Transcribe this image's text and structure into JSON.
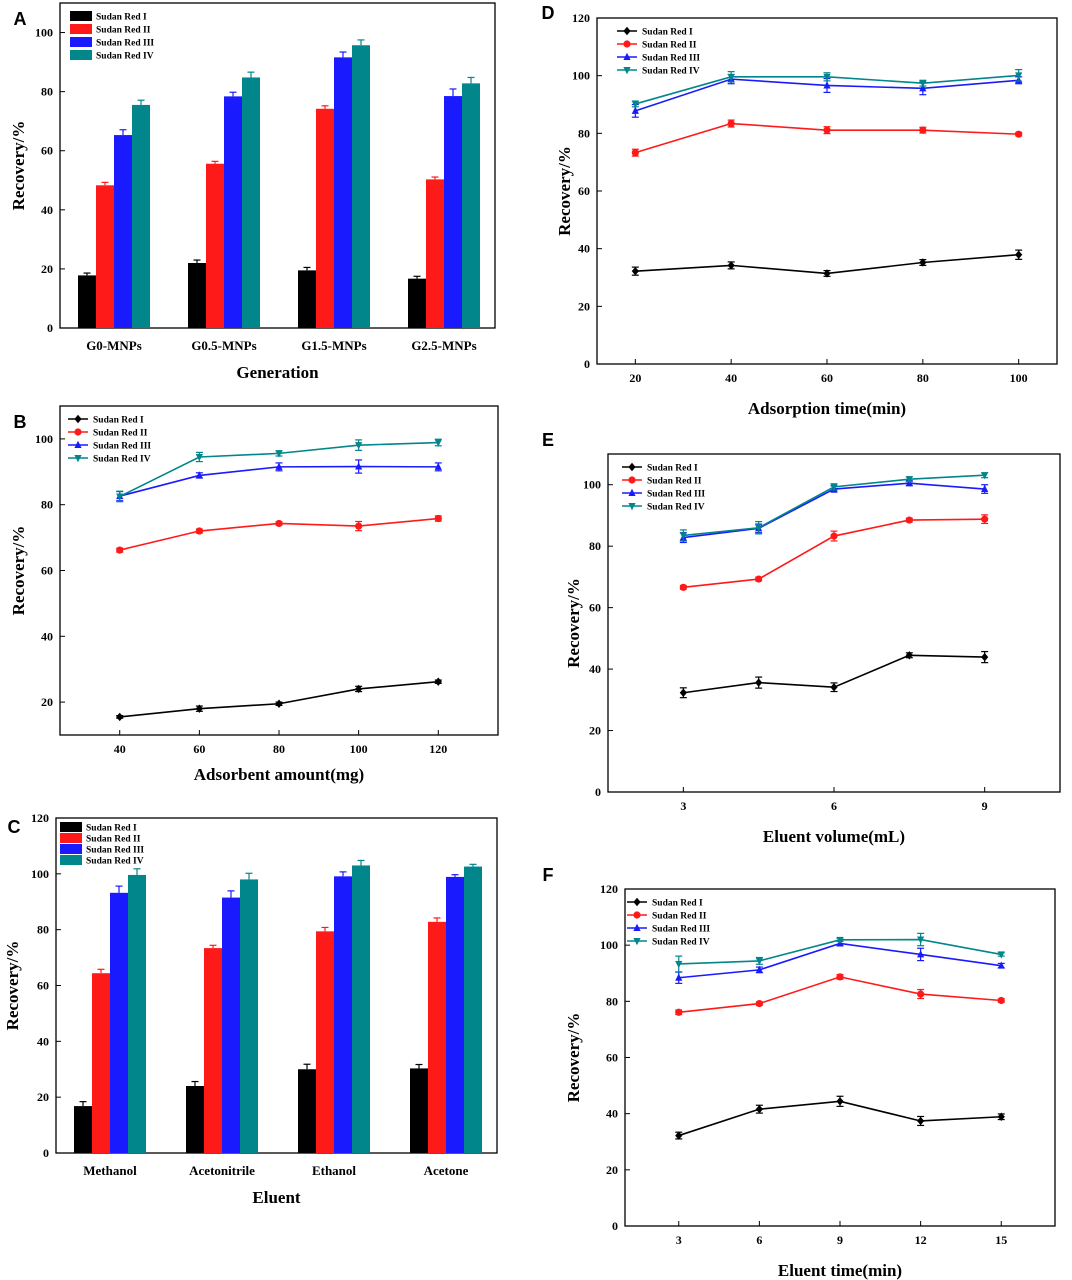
{
  "colors": {
    "sudan_red_i": "#000000",
    "sudan_red_ii": "#ff1a1a",
    "sudan_red_iii": "#1a1aff",
    "sudan_red_iv": "#00868b"
  },
  "chart_data": [
    {
      "panel": "A",
      "type": "bar",
      "categories": [
        "G0-MNPs",
        "G0.5-MNPs",
        "G1.5-MNPs",
        "G2.5-MNPs"
      ],
      "xlabel": "Generation",
      "ylabel": "Recovery/%",
      "ylim": [
        0,
        110
      ],
      "yticks": [
        "0",
        "20",
        "40",
        "60",
        "80",
        "100"
      ],
      "legend_position": "top-left",
      "series": [
        {
          "name": "Sudan Red I",
          "values": [
            17.8,
            22.0,
            19.5,
            16.7
          ],
          "errors": [
            0.8,
            1.0,
            1.0,
            0.8
          ]
        },
        {
          "name": "Sudan Red II",
          "values": [
            48.3,
            55.6,
            74.2,
            50.3
          ],
          "errors": [
            1.0,
            0.8,
            1.0,
            0.8
          ]
        },
        {
          "name": "Sudan Red III",
          "values": [
            65.3,
            78.4,
            91.6,
            78.5
          ],
          "errors": [
            1.8,
            1.4,
            1.8,
            2.4
          ]
        },
        {
          "name": "Sudan Red IV",
          "values": [
            75.5,
            84.8,
            95.7,
            82.8
          ],
          "errors": [
            1.6,
            1.8,
            1.8,
            2.0
          ]
        }
      ]
    },
    {
      "panel": "B",
      "type": "line",
      "x": [
        40,
        60,
        80,
        100,
        120
      ],
      "xlabel": "Adsorbent amount(mg)",
      "ylabel": "Recovery/%",
      "xlim": [
        25,
        135
      ],
      "ylim": [
        10,
        110
      ],
      "xticks": [
        "40",
        "60",
        "80",
        "100",
        "120"
      ],
      "yticks": [
        "20",
        "40",
        "60",
        "80",
        "100"
      ],
      "legend_position": "top-left",
      "series": [
        {
          "name": "Sudan Red I",
          "values": [
            15.5,
            18.0,
            19.5,
            24.0,
            26.2
          ],
          "errors": [
            0.4,
            0.8,
            0.5,
            0.8,
            0.5
          ]
        },
        {
          "name": "Sudan Red II",
          "values": [
            66.2,
            72.0,
            74.3,
            73.5,
            75.8
          ],
          "errors": [
            0.6,
            0.6,
            0.5,
            1.4,
            0.8
          ]
        },
        {
          "name": "Sudan Red III",
          "values": [
            82.6,
            88.9,
            91.5,
            91.6,
            91.5
          ],
          "errors": [
            1.4,
            0.8,
            1.2,
            2.0,
            1.2
          ]
        },
        {
          "name": "Sudan Red IV",
          "values": [
            82.5,
            94.5,
            95.6,
            98.1,
            98.9
          ],
          "errors": [
            1.6,
            1.4,
            0.8,
            1.6,
            1.0
          ]
        }
      ]
    },
    {
      "panel": "C",
      "type": "bar",
      "categories": [
        "Methanol",
        "Acetonitrile",
        "Ethanol",
        "Acetone"
      ],
      "xlabel": "Eluent",
      "ylabel": "Recovery/%",
      "ylim": [
        0,
        120
      ],
      "yticks": [
        "0",
        "20",
        "40",
        "60",
        "80",
        "100",
        "120"
      ],
      "legend_position": "top-left",
      "series": [
        {
          "name": "Sudan Red I",
          "values": [
            16.8,
            24.0,
            30.0,
            30.3
          ],
          "errors": [
            1.6,
            1.6,
            1.8,
            1.4
          ]
        },
        {
          "name": "Sudan Red II",
          "values": [
            64.4,
            73.4,
            79.4,
            82.8
          ],
          "errors": [
            1.4,
            1.0,
            1.4,
            1.4
          ]
        },
        {
          "name": "Sudan Red III",
          "values": [
            93.2,
            91.5,
            99.1,
            98.9
          ],
          "errors": [
            2.4,
            2.4,
            1.6,
            0.8
          ]
        },
        {
          "name": "Sudan Red IV",
          "values": [
            99.6,
            98.0,
            103.0,
            102.6
          ],
          "errors": [
            2.2,
            2.2,
            1.8,
            0.8
          ]
        }
      ]
    },
    {
      "panel": "D",
      "type": "line",
      "x": [
        20,
        40,
        60,
        80,
        100
      ],
      "xlabel": "Adsorption time(min)",
      "ylabel": "Recovery/%",
      "xlim": [
        12,
        108
      ],
      "ylim": [
        0,
        120
      ],
      "xticks": [
        "20",
        "40",
        "60",
        "80",
        "100"
      ],
      "yticks": [
        "0",
        "20",
        "40",
        "60",
        "80",
        "100",
        "120"
      ],
      "legend_position": "top-left",
      "series": [
        {
          "name": "Sudan Red I",
          "values": [
            32.2,
            34.2,
            31.4,
            35.2,
            37.9
          ],
          "errors": [
            1.4,
            1.2,
            1.0,
            1.0,
            1.6
          ]
        },
        {
          "name": "Sudan Red II",
          "values": [
            73.3,
            83.4,
            81.1,
            81.1,
            79.7
          ],
          "errors": [
            1.2,
            1.2,
            1.2,
            1.0,
            0.6
          ]
        },
        {
          "name": "Sudan Red III",
          "values": [
            87.8,
            98.8,
            96.6,
            95.6,
            98.4
          ],
          "errors": [
            2.2,
            1.6,
            2.4,
            2.2,
            1.2
          ]
        },
        {
          "name": "Sudan Red IV",
          "values": [
            90.2,
            99.6,
            99.6,
            97.4,
            100.1
          ],
          "errors": [
            1.0,
            1.8,
            1.4,
            1.0,
            2.0
          ]
        }
      ]
    },
    {
      "panel": "E",
      "type": "line",
      "x": [
        3,
        4.5,
        6,
        7.5,
        9
      ],
      "xlabel": "Eluent volume(mL)",
      "ylabel": "Recovery/%",
      "xlim": [
        1.5,
        10.5
      ],
      "ylim": [
        0,
        110
      ],
      "xticks": [
        "3",
        "6",
        "9"
      ],
      "yticks": [
        "0",
        "20",
        "40",
        "60",
        "80",
        "100"
      ],
      "legend_position": "top-left",
      "series": [
        {
          "name": "Sudan Red I",
          "values": [
            32.3,
            35.6,
            34.1,
            44.5,
            43.9
          ],
          "errors": [
            1.6,
            1.8,
            1.4,
            0.8,
            1.8
          ]
        },
        {
          "name": "Sudan Red II",
          "values": [
            66.6,
            69.3,
            83.3,
            88.5,
            88.8
          ],
          "errors": [
            0.6,
            0.6,
            1.6,
            0.6,
            1.4
          ]
        },
        {
          "name": "Sudan Red III",
          "values": [
            82.8,
            85.8,
            98.6,
            100.5,
            98.6
          ],
          "errors": [
            1.6,
            1.4,
            1.0,
            0.8,
            1.4
          ]
        },
        {
          "name": "Sudan Red IV",
          "values": [
            83.5,
            86.0,
            99.3,
            101.8,
            103.1
          ],
          "errors": [
            1.8,
            2.0,
            1.0,
            0.8,
            0.8
          ]
        }
      ]
    },
    {
      "panel": "F",
      "type": "line",
      "x": [
        3,
        6,
        9,
        12,
        15
      ],
      "xlabel": "Eluent time(min)",
      "ylabel": "Recovery/%",
      "xlim": [
        1,
        17
      ],
      "ylim": [
        0,
        120
      ],
      "xticks": [
        "3",
        "6",
        "9",
        "12",
        "15"
      ],
      "yticks": [
        "0",
        "20",
        "40",
        "60",
        "80",
        "100",
        "120"
      ],
      "legend_position": "top-left",
      "series": [
        {
          "name": "Sudan Red I",
          "values": [
            32.2,
            41.6,
            44.4,
            37.4,
            38.9
          ],
          "errors": [
            1.2,
            1.4,
            1.8,
            1.6,
            1.0
          ]
        },
        {
          "name": "Sudan Red II",
          "values": [
            76.1,
            79.2,
            88.7,
            82.6,
            80.3
          ],
          "errors": [
            0.8,
            0.6,
            0.8,
            1.6,
            0.6
          ]
        },
        {
          "name": "Sudan Red III",
          "values": [
            88.4,
            91.2,
            100.6,
            96.7,
            92.7
          ],
          "errors": [
            2.0,
            1.0,
            0.8,
            2.2,
            0.8
          ]
        },
        {
          "name": "Sudan Red IV",
          "values": [
            93.3,
            94.4,
            101.9,
            102.0,
            96.7
          ],
          "errors": [
            2.8,
            1.2,
            0.6,
            2.2,
            0.6
          ]
        }
      ]
    }
  ]
}
